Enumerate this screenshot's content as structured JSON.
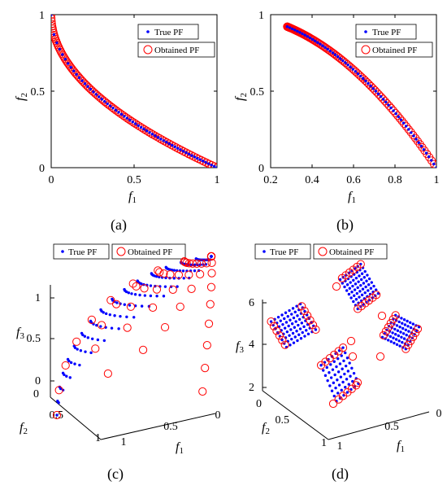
{
  "legend": {
    "true_pf": "True PF",
    "obtained_pf": "Obtained PF"
  },
  "colors": {
    "true_pf": "#0000ff",
    "obtained_pf": "#ff0000",
    "axis": "#000000"
  },
  "chart_data": [
    {
      "id": "a",
      "caption": "(a)",
      "type": "scatter",
      "xlabel": "f1",
      "ylabel": "f2",
      "xlim": [
        0,
        1
      ],
      "ylim": [
        0,
        1
      ],
      "xticks": [
        "0",
        "0.5",
        "1"
      ],
      "yticks": [
        "0",
        "0.5",
        "1"
      ],
      "legend_position": "top-right",
      "true_pf": {
        "x_range": [
          0,
          1
        ],
        "points": 60,
        "curve": "f2 = 1 - sqrt(f1)"
      },
      "obtained_pf": {
        "x_range": [
          0,
          1
        ],
        "points": 100,
        "curve": "f2 = 1 - sqrt(f1)"
      }
    },
    {
      "id": "b",
      "caption": "(b)",
      "type": "scatter",
      "xlabel": "f1",
      "ylabel": "f2",
      "xlim": [
        0.2,
        1
      ],
      "ylim": [
        0,
        1
      ],
      "xticks": [
        "0.2",
        "0.4",
        "0.6",
        "0.8",
        "1"
      ],
      "yticks": [
        "0",
        "0.5",
        "1"
      ],
      "legend_position": "top-right",
      "true_pf": {
        "x_range": [
          0.28,
          1
        ],
        "points": 60,
        "curve": "f2 = 1 - f1^2"
      },
      "obtained_pf": {
        "x_range": [
          0.28,
          1
        ],
        "points": 100,
        "curve": "f2 = 1 - f1^2"
      }
    },
    {
      "id": "c",
      "caption": "(c)",
      "type": "scatter3d",
      "xlabel": "f1",
      "ylabel": "f2",
      "zlabel": "f3",
      "xlim": [
        0,
        1
      ],
      "ylim": [
        0,
        1
      ],
      "zlim": [
        0,
        1
      ],
      "xticks": [
        "0",
        "0.5",
        "1"
      ],
      "yticks": [
        "0",
        "0.5",
        "1"
      ],
      "zticks": [
        "0",
        "0.5",
        "1"
      ],
      "legend_position": "top",
      "surface": "f1^2 + f2^2 + f3^2 = 1"
    },
    {
      "id": "d",
      "caption": "(d)",
      "type": "scatter3d",
      "xlabel": "f1",
      "ylabel": "f2",
      "zlabel": "f3",
      "xlim": [
        0,
        1
      ],
      "ylim": [
        0,
        1
      ],
      "zlim": [
        2,
        6
      ],
      "xticks": [
        "0",
        "0.5",
        "1"
      ],
      "yticks": [
        "0",
        "0.5",
        "1"
      ],
      "zticks": [
        "2",
        "4",
        "6"
      ],
      "legend_position": "top",
      "regions": 4
    }
  ]
}
